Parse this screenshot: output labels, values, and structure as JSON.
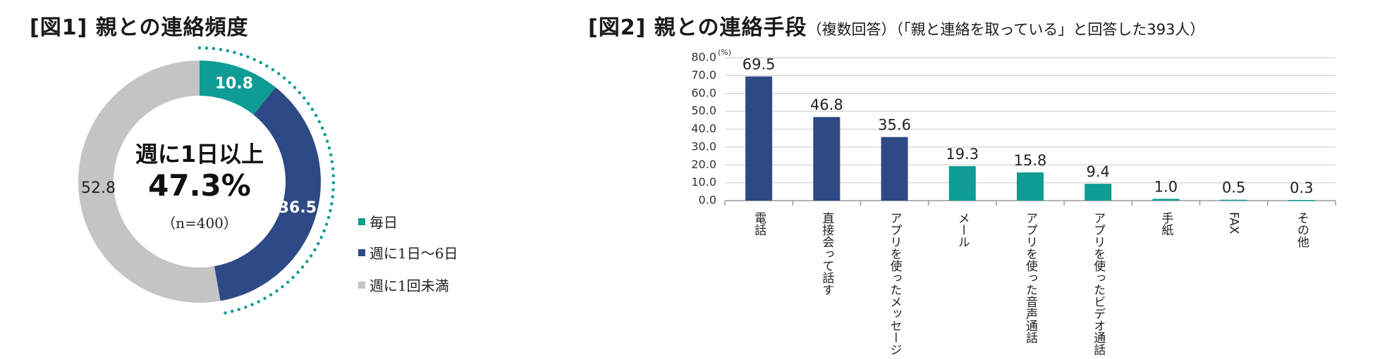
{
  "fig1": {
    "title": "[図1] 親との連絡頻度",
    "center_label": "週に1日以上",
    "center_value": "47.3%",
    "center_n": "（n=400）",
    "chart_data": {
      "type": "pie",
      "variant": "donut",
      "categories": [
        "毎日",
        "週に1日〜6日",
        "週に1回未満"
      ],
      "values": [
        10.8,
        36.5,
        52.8
      ],
      "value_labels": [
        "10.8",
        "36.5",
        "52.8"
      ],
      "colors": [
        "#0e9c94",
        "#2e4a85",
        "#c4c4c4"
      ],
      "legend_position": "right"
    }
  },
  "fig2": {
    "title_main": "[図2] 親との連絡手段",
    "title_sub": "（複数回答）（「親と連絡を取っている」と回答した393人）",
    "chart_data": {
      "type": "bar",
      "categories": [
        "電話",
        "直接会って話す",
        "アプリを使ったメッセージ",
        "メール",
        "アプリを使った音声通話",
        "アプリを使ったビデオ通話",
        "手紙",
        "FAX",
        "その他"
      ],
      "values": [
        69.5,
        46.8,
        35.6,
        19.3,
        15.8,
        9.4,
        1.0,
        0.5,
        0.3
      ],
      "value_labels": [
        "69.5",
        "46.8",
        "35.6",
        "19.3",
        "15.8",
        "9.4",
        "1.0",
        "0.5",
        "0.3"
      ],
      "bar_colors": [
        "#2e4a85",
        "#2e4a85",
        "#2e4a85",
        "#0e9c94",
        "#0e9c94",
        "#0e9c94",
        "#0e9c94",
        "#0e9c94",
        "#0e9c94"
      ],
      "ylim": [
        0,
        80
      ],
      "yticks": [
        "0.0",
        "10.0",
        "20.0",
        "30.0",
        "40.0",
        "50.0",
        "60.0",
        "70.0",
        "80.0"
      ],
      "y_unit": "(%)",
      "grid": true
    }
  }
}
